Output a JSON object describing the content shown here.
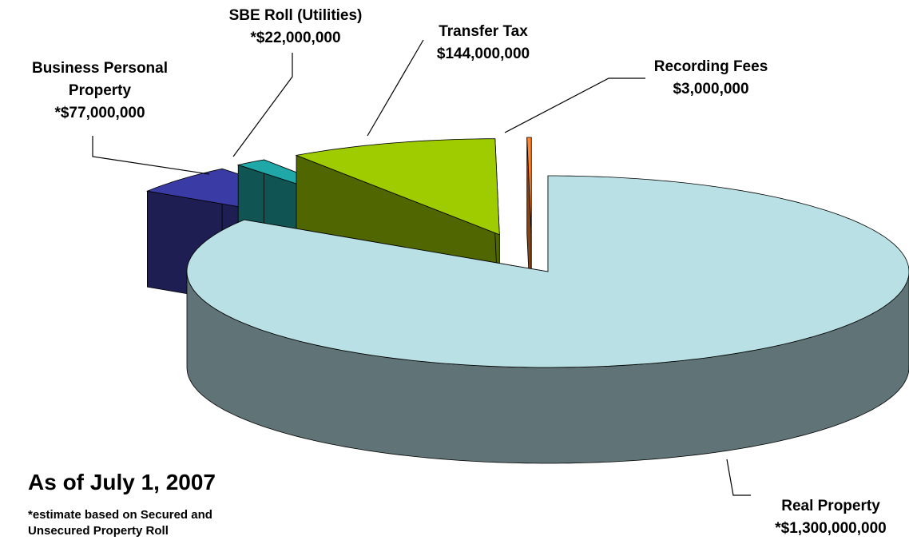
{
  "chart_data": {
    "type": "pie3d",
    "categories": [
      "Real Property",
      "Business Personal Property",
      "SBE Roll (Utilities)",
      "Transfer Tax",
      "Recording Fees"
    ],
    "values": [
      1300000000,
      77000000,
      22000000,
      144000000,
      3000000
    ],
    "value_labels": [
      "*$1,300,000,000",
      "*$77,000,000",
      "*$22,000,000",
      "$144,000,000",
      "$3,000,000"
    ],
    "colors": [
      "#b9e0e4",
      "#3b3ba6",
      "#20a8a8",
      "#9fcc00",
      "#ff8533"
    ],
    "annotations": [
      "As of July 1, 2007",
      "*estimate based on Secured and Unsecured Property Roll"
    ]
  }
}
